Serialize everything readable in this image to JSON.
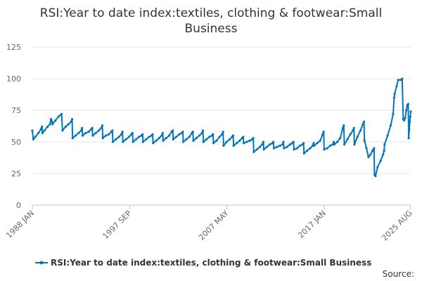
{
  "chart_data": {
    "type": "line",
    "title_line1": "RSI:Year to date index:textiles, clothing & footwear:Small",
    "title_line2": "Business",
    "yticks": [
      0,
      25,
      50,
      75,
      100,
      125
    ],
    "ylim": [
      0,
      125
    ],
    "xlim": [
      1988.0,
      2025.6
    ],
    "xtick_labels": [
      {
        "label": "1988 JAN",
        "x": 1988.0
      },
      {
        "label": "1997 SEP",
        "x": 1997.67
      },
      {
        "label": "2007 MAY",
        "x": 2007.33
      },
      {
        "label": "2017 JAN",
        "x": 2017.0
      },
      {
        "label": "2025 AUG",
        "x": 2025.58
      }
    ],
    "grid": true,
    "legend_position": "bottom",
    "source_label": "Source:",
    "color": "#0076b6",
    "series": [
      {
        "name": "RSI:Year to date index:textiles, clothing & footwear:Small Business",
        "points": [
          [
            1988.0,
            59
          ],
          [
            1988.1,
            52
          ],
          [
            1988.3,
            54
          ],
          [
            1988.6,
            57
          ],
          [
            1988.85,
            60
          ],
          [
            1988.95,
            62
          ],
          [
            1989.0,
            57
          ],
          [
            1989.2,
            59
          ],
          [
            1989.5,
            62
          ],
          [
            1989.75,
            64
          ],
          [
            1989.85,
            68
          ],
          [
            1989.95,
            66
          ],
          [
            1990.0,
            64
          ],
          [
            1990.3,
            67
          ],
          [
            1990.6,
            70
          ],
          [
            1990.9,
            72
          ],
          [
            1991.0,
            59
          ],
          [
            1991.3,
            62
          ],
          [
            1991.6,
            64
          ],
          [
            1991.85,
            66
          ],
          [
            1991.95,
            68
          ],
          [
            1992.0,
            53
          ],
          [
            1992.3,
            55
          ],
          [
            1992.6,
            57
          ],
          [
            1992.85,
            59
          ],
          [
            1992.95,
            61
          ],
          [
            1993.0,
            55
          ],
          [
            1993.3,
            57
          ],
          [
            1993.6,
            58
          ],
          [
            1993.85,
            60
          ],
          [
            1993.95,
            61
          ],
          [
            1994.0,
            55
          ],
          [
            1994.3,
            57
          ],
          [
            1994.6,
            59
          ],
          [
            1994.85,
            61
          ],
          [
            1994.95,
            63
          ],
          [
            1995.0,
            53
          ],
          [
            1995.3,
            55
          ],
          [
            1995.6,
            56
          ],
          [
            1995.85,
            58
          ],
          [
            1995.95,
            59
          ],
          [
            1996.0,
            50
          ],
          [
            1996.3,
            52
          ],
          [
            1996.6,
            54
          ],
          [
            1996.85,
            56
          ],
          [
            1996.95,
            58
          ],
          [
            1997.0,
            50
          ],
          [
            1997.3,
            52
          ],
          [
            1997.6,
            54
          ],
          [
            1997.85,
            56
          ],
          [
            1997.95,
            57
          ],
          [
            1998.0,
            50
          ],
          [
            1998.3,
            52
          ],
          [
            1998.6,
            54
          ],
          [
            1998.85,
            55
          ],
          [
            1998.95,
            56
          ],
          [
            1999.0,
            50
          ],
          [
            1999.3,
            52
          ],
          [
            1999.6,
            54
          ],
          [
            1999.85,
            55
          ],
          [
            1999.95,
            56
          ],
          [
            2000.0,
            49
          ],
          [
            2000.3,
            51
          ],
          [
            2000.6,
            53
          ],
          [
            2000.85,
            55
          ],
          [
            2000.95,
            57
          ],
          [
            2001.0,
            51
          ],
          [
            2001.3,
            53
          ],
          [
            2001.6,
            55
          ],
          [
            2001.85,
            58
          ],
          [
            2001.95,
            59
          ],
          [
            2002.0,
            52
          ],
          [
            2002.3,
            54
          ],
          [
            2002.6,
            56
          ],
          [
            2002.85,
            57
          ],
          [
            2002.95,
            58
          ],
          [
            2003.0,
            50
          ],
          [
            2003.3,
            52
          ],
          [
            2003.6,
            54
          ],
          [
            2003.85,
            57
          ],
          [
            2003.95,
            58
          ],
          [
            2004.0,
            51
          ],
          [
            2004.3,
            53
          ],
          [
            2004.6,
            55
          ],
          [
            2004.85,
            57
          ],
          [
            2004.95,
            59
          ],
          [
            2005.0,
            50
          ],
          [
            2005.3,
            52
          ],
          [
            2005.6,
            54
          ],
          [
            2005.85,
            55
          ],
          [
            2005.95,
            56
          ],
          [
            2006.0,
            49
          ],
          [
            2006.3,
            51
          ],
          [
            2006.6,
            54
          ],
          [
            2006.85,
            56
          ],
          [
            2006.95,
            58
          ],
          [
            2007.0,
            47
          ],
          [
            2007.3,
            50
          ],
          [
            2007.6,
            52
          ],
          [
            2007.85,
            54
          ],
          [
            2007.95,
            55
          ],
          [
            2008.0,
            47
          ],
          [
            2008.3,
            49
          ],
          [
            2008.6,
            51
          ],
          [
            2008.85,
            53
          ],
          [
            2008.95,
            54
          ],
          [
            2009.0,
            49
          ],
          [
            2009.3,
            50
          ],
          [
            2009.6,
            51
          ],
          [
            2009.85,
            52
          ],
          [
            2009.95,
            53
          ],
          [
            2010.0,
            42
          ],
          [
            2010.3,
            44
          ],
          [
            2010.6,
            46
          ],
          [
            2010.85,
            48
          ],
          [
            2010.95,
            50
          ],
          [
            2011.0,
            44
          ],
          [
            2011.3,
            46
          ],
          [
            2011.6,
            48
          ],
          [
            2011.85,
            49
          ],
          [
            2011.95,
            50
          ],
          [
            2012.0,
            45
          ],
          [
            2012.3,
            46
          ],
          [
            2012.6,
            47
          ],
          [
            2012.85,
            48
          ],
          [
            2012.95,
            50
          ],
          [
            2013.0,
            45
          ],
          [
            2013.3,
            46
          ],
          [
            2013.6,
            48
          ],
          [
            2013.85,
            49
          ],
          [
            2013.95,
            50
          ],
          [
            2014.0,
            44
          ],
          [
            2014.3,
            45
          ],
          [
            2014.6,
            47
          ],
          [
            2014.85,
            48
          ],
          [
            2014.95,
            49
          ],
          [
            2015.0,
            41
          ],
          [
            2015.3,
            43
          ],
          [
            2015.6,
            45
          ],
          [
            2015.85,
            47
          ],
          [
            2015.95,
            49
          ],
          [
            2016.0,
            47
          ],
          [
            2016.3,
            49
          ],
          [
            2016.6,
            51
          ],
          [
            2016.85,
            56
          ],
          [
            2016.95,
            58
          ],
          [
            2017.0,
            44
          ],
          [
            2017.3,
            45
          ],
          [
            2017.6,
            47
          ],
          [
            2017.85,
            48
          ],
          [
            2017.95,
            50
          ],
          [
            2018.0,
            48
          ],
          [
            2018.3,
            50
          ],
          [
            2018.6,
            53
          ],
          [
            2018.85,
            61
          ],
          [
            2018.95,
            63
          ],
          [
            2019.0,
            48
          ],
          [
            2019.3,
            52
          ],
          [
            2019.6,
            56
          ],
          [
            2019.85,
            59
          ],
          [
            2019.95,
            61
          ],
          [
            2020.0,
            48
          ],
          [
            2020.3,
            54
          ],
          [
            2020.6,
            59
          ],
          [
            2020.85,
            64
          ],
          [
            2020.95,
            66
          ],
          [
            2021.0,
            51
          ],
          [
            2021.2,
            45
          ],
          [
            2021.4,
            38
          ],
          [
            2021.6,
            40
          ],
          [
            2021.8,
            43
          ],
          [
            2021.95,
            45
          ],
          [
            2022.0,
            24
          ],
          [
            2022.1,
            23
          ],
          [
            2022.3,
            30
          ],
          [
            2022.6,
            35
          ],
          [
            2022.85,
            40
          ],
          [
            2022.95,
            43
          ],
          [
            2023.0,
            48
          ],
          [
            2023.3,
            55
          ],
          [
            2023.6,
            63
          ],
          [
            2023.85,
            72
          ],
          [
            2023.95,
            85
          ],
          [
            2024.0,
            88
          ],
          [
            2024.2,
            94
          ],
          [
            2024.35,
            99
          ],
          [
            2024.6,
            99
          ],
          [
            2024.75,
            100
          ],
          [
            2024.85,
            68
          ],
          [
            2024.95,
            67
          ],
          [
            2025.05,
            69
          ],
          [
            2025.15,
            75
          ],
          [
            2025.25,
            79
          ],
          [
            2025.35,
            80
          ],
          [
            2025.4,
            53
          ],
          [
            2025.45,
            60
          ],
          [
            2025.5,
            66
          ],
          [
            2025.55,
            70
          ],
          [
            2025.6,
            74
          ]
        ]
      }
    ]
  }
}
